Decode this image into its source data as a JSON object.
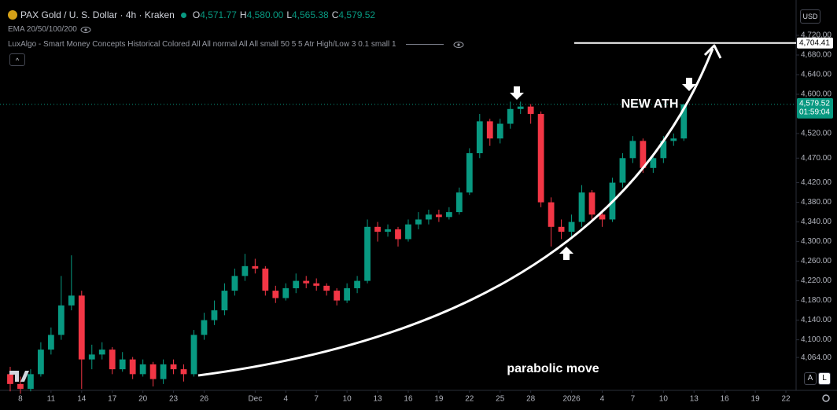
{
  "chart_data": {
    "type": "candlestick",
    "title": "PAX Gold / U. S. Dollar · 4h · Kraken",
    "ohlc": [
      {
        "key": "O",
        "value": "4,571.77"
      },
      {
        "key": "H",
        "value": "4,580.00"
      },
      {
        "key": "L",
        "value": "4,565.38"
      },
      {
        "key": "C",
        "value": "4,579.52"
      }
    ],
    "indicators": [
      "EMA 20/50/100/200",
      "LuxAlgo - Smart Money Concepts Historical Colored All All normal All All small 50 5 5 Atr High/Low 3 0.1 small 1"
    ],
    "currency": "USD",
    "up_color": "#089981",
    "down_color": "#f23645",
    "open": [
      4030,
      4010,
      4000,
      4030,
      4080,
      4110,
      4170,
      4190,
      4060,
      4070,
      4080,
      4040,
      4060,
      4030,
      4050,
      4020,
      4050,
      4040,
      4030,
      4110,
      4140,
      4160,
      4200,
      4230,
      4250,
      4245,
      4200,
      4185,
      4205,
      4220,
      4215,
      4210,
      4200,
      4180,
      4205,
      4220,
      4330,
      4320,
      4325,
      4305,
      4335,
      4345,
      4355,
      4350,
      4360,
      4400,
      4480,
      4545,
      4510,
      4540,
      4570,
      4575,
      4560,
      4380,
      4330,
      4320,
      4340,
      4400,
      4355,
      4345,
      4420,
      4470,
      4505,
      4450,
      4470,
      4505,
      4510
    ],
    "high": [
      4045,
      4025,
      4040,
      4095,
      4125,
      4230,
      4272,
      4200,
      4090,
      4095,
      4085,
      4075,
      4065,
      4060,
      4055,
      4060,
      4060,
      4050,
      4120,
      4155,
      4180,
      4215,
      4245,
      4275,
      4265,
      4250,
      4210,
      4215,
      4235,
      4230,
      4225,
      4215,
      4205,
      4215,
      4230,
      4345,
      4340,
      4335,
      4330,
      4345,
      4360,
      4365,
      4365,
      4370,
      4410,
      4490,
      4560,
      4550,
      4550,
      4585,
      4585,
      4580,
      4565,
      4390,
      4345,
      4355,
      4415,
      4405,
      4365,
      4430,
      4480,
      4515,
      4510,
      4480,
      4515,
      4520,
      4580
    ],
    "low": [
      3995,
      3990,
      3995,
      4025,
      4070,
      4100,
      4160,
      4000,
      4040,
      4060,
      4030,
      4035,
      4020,
      4025,
      4005,
      4010,
      4030,
      4015,
      4025,
      4100,
      4130,
      4150,
      4190,
      4220,
      4235,
      4190,
      4175,
      4180,
      4195,
      4205,
      4200,
      4190,
      4170,
      4175,
      4195,
      4215,
      4300,
      4310,
      4290,
      4300,
      4325,
      4335,
      4340,
      4345,
      4355,
      4395,
      4470,
      4495,
      4500,
      4530,
      4560,
      4540,
      4370,
      4290,
      4305,
      4310,
      4330,
      4345,
      4330,
      4340,
      4410,
      4460,
      4440,
      4440,
      4460,
      4495,
      4505
    ],
    "close": [
      4010,
      4000,
      4030,
      4080,
      4110,
      4170,
      4190,
      4060,
      4070,
      4080,
      4040,
      4060,
      4030,
      4050,
      4020,
      4050,
      4040,
      4030,
      4110,
      4140,
      4160,
      4200,
      4230,
      4250,
      4245,
      4200,
      4185,
      4205,
      4220,
      4215,
      4210,
      4200,
      4180,
      4205,
      4220,
      4330,
      4320,
      4325,
      4305,
      4335,
      4345,
      4355,
      4350,
      4360,
      4400,
      4480,
      4545,
      4510,
      4540,
      4570,
      4575,
      4560,
      4380,
      4330,
      4320,
      4340,
      4400,
      4355,
      4345,
      4420,
      4470,
      4505,
      4450,
      4470,
      4505,
      4510,
      4579.52
    ],
    "xlim": [
      -1,
      77
    ],
    "xticks": [
      {
        "value": 1,
        "label": "8"
      },
      {
        "value": 4,
        "label": "11"
      },
      {
        "value": 7,
        "label": "14"
      },
      {
        "value": 10,
        "label": "17"
      },
      {
        "value": 13,
        "label": "20"
      },
      {
        "value": 16,
        "label": "23"
      },
      {
        "value": 19,
        "label": "26"
      },
      {
        "value": 24,
        "label": "Dec"
      },
      {
        "value": 27,
        "label": "4"
      },
      {
        "value": 30,
        "label": "7"
      },
      {
        "value": 33,
        "label": "10"
      },
      {
        "value": 36,
        "label": "13"
      },
      {
        "value": 39,
        "label": "16"
      },
      {
        "value": 42,
        "label": "19"
      },
      {
        "value": 45,
        "label": "22"
      },
      {
        "value": 48,
        "label": "25"
      },
      {
        "value": 51,
        "label": "28"
      },
      {
        "value": 55,
        "label": "2026"
      },
      {
        "value": 58,
        "label": "4"
      },
      {
        "value": 61,
        "label": "7"
      },
      {
        "value": 64,
        "label": "10"
      },
      {
        "value": 67,
        "label": "13"
      },
      {
        "value": 70,
        "label": "16"
      },
      {
        "value": 73,
        "label": "19"
      },
      {
        "value": 76,
        "label": "22"
      }
    ],
    "ylim": [
      3997,
      4792
    ],
    "yticks": [
      {
        "value": 4720,
        "label": "4,720.00"
      },
      {
        "value": 4680,
        "label": "4,680.00"
      },
      {
        "value": 4640,
        "label": "4,640.00"
      },
      {
        "value": 4600,
        "label": "4,600.00"
      },
      {
        "value": 4520,
        "label": "4,520.00"
      },
      {
        "value": 4470,
        "label": "4,470.00"
      },
      {
        "value": 4420,
        "label": "4,420.00"
      },
      {
        "value": 4380,
        "label": "4,380.00"
      },
      {
        "value": 4340,
        "label": "4,340.00"
      },
      {
        "value": 4300,
        "label": "4,300.00"
      },
      {
        "value": 4260,
        "label": "4,260.00"
      },
      {
        "value": 4220,
        "label": "4,220.00"
      },
      {
        "value": 4180,
        "label": "4,180.00"
      },
      {
        "value": 4140,
        "label": "4,140.00"
      },
      {
        "value": 4100,
        "label": "4,100.00"
      },
      {
        "value": 4064,
        "label": "4,064.00"
      }
    ],
    "levels": [
      {
        "value": 4704.41,
        "label": "4,704.41"
      }
    ],
    "last_price": {
      "value": 4579.52,
      "label": "4,579.52",
      "countdown": "01:59:04"
    },
    "annotations": [
      "NEW ATH",
      "parabolic move"
    ],
    "scale_buttons": [
      "A",
      "L"
    ]
  }
}
